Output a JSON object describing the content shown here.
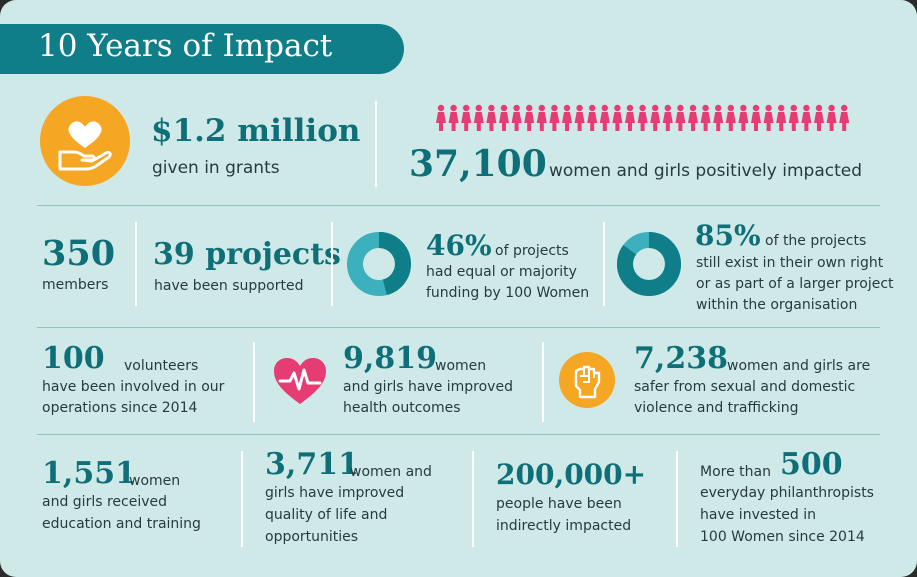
{
  "title": "10 Years of Impact",
  "colors": {
    "teal": "#0f7e88",
    "orange": "#f5a623",
    "pink": "#e43c73",
    "light_teal": "#3cb1bd"
  },
  "row1": {
    "grants": {
      "number": "$1.2 million",
      "label": "given in grants",
      "icon": "heart-in-hand-icon"
    },
    "women": {
      "number": "37,100",
      "label": "women and girls positively impacted",
      "icon": "women-figures-icon",
      "figure_count": 33
    }
  },
  "row2": {
    "members": {
      "number": "350",
      "label": "members"
    },
    "projects": {
      "number": "39 projects",
      "label": "have been supported"
    },
    "equal_funding": {
      "number": "46%",
      "text1": "of projects",
      "text2": "had equal or majority",
      "text3": "funding by 100 Women",
      "percent": 46
    },
    "still_exist": {
      "number": "85%",
      "text1": "of the projects",
      "text2": "still exist in their own right",
      "text3": "or as part of a larger project",
      "text4": "within the organisation",
      "percent": 85
    }
  },
  "row3": {
    "volunteers": {
      "number": "100",
      "text1": "volunteers",
      "text2": "have been involved in our",
      "text3": "operations since 2014"
    },
    "health": {
      "number": "9,819",
      "text1": "women",
      "text2": "and girls have improved",
      "text3": "health outcomes",
      "icon": "heartbeat-icon"
    },
    "safer": {
      "number": "7,238",
      "text1": "women and girls are",
      "text2": "safer from sexual and domestic",
      "text3": "violence and trafficking",
      "icon": "raised-fist-icon"
    }
  },
  "row4": {
    "education": {
      "number": "1,551",
      "text1": "women",
      "text2": "and girls received",
      "text3": "education and training"
    },
    "quality": {
      "number": "3,711",
      "text1": "women and",
      "text2": "girls have improved",
      "text3": "quality of life and",
      "text4": "opportunities"
    },
    "indirect": {
      "number": "200,000+",
      "text1": "people have been",
      "text2": "indirectly impacted"
    },
    "philanthropists": {
      "prefix": "More than",
      "number": "500",
      "text1": "everyday philanthropists",
      "text2": "have invested in",
      "text3": "100 Women since 2014"
    }
  }
}
